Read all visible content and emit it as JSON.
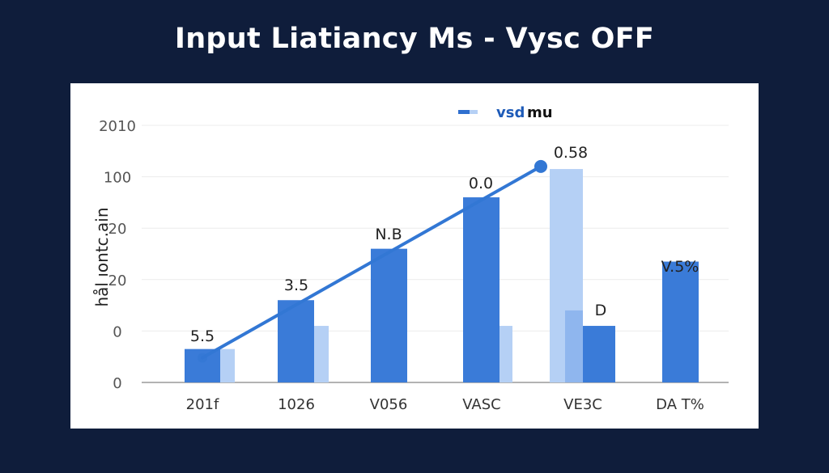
{
  "title": "Input Liatiancy Ms - Vysc OFF",
  "chart_data": {
    "type": "bar",
    "title": "Input Liatiancy Ms - Vysc OFF",
    "xlabel": "",
    "ylabel": "hål ıontc.ain",
    "y_tick_labels": [
      "0",
      "0",
      "20",
      "20",
      "100",
      "2010"
    ],
    "ylim": [
      0,
      5
    ],
    "grid": true,
    "legend": {
      "position": "top-center",
      "label_part1": "vsd",
      "label_part2": "mu"
    },
    "categories": [
      "201f",
      "1026",
      "V056",
      "VASC",
      "VE3C",
      "DA T%"
    ],
    "series": [
      {
        "color": "#3a7bd8",
        "values": [
          0.65,
          1.6,
          2.6,
          3.6,
          1.1,
          2.35
        ]
      },
      {
        "color": "#b5d0f5",
        "values": [
          0.65,
          1.1,
          null,
          1.1,
          4.15,
          null
        ]
      },
      {
        "color": "#8fb6ee",
        "values": [
          null,
          null,
          null,
          null,
          1.4,
          null
        ]
      }
    ],
    "line": {
      "color": "#3277d4",
      "points": [
        {
          "category": "201f",
          "y": 0.48
        },
        {
          "category": "VE3C",
          "y": 4.2
        }
      ]
    },
    "data_labels": [
      "5.5",
      "3.5",
      "N.B",
      "0.0",
      "0.58",
      "D",
      "V.5%"
    ]
  }
}
